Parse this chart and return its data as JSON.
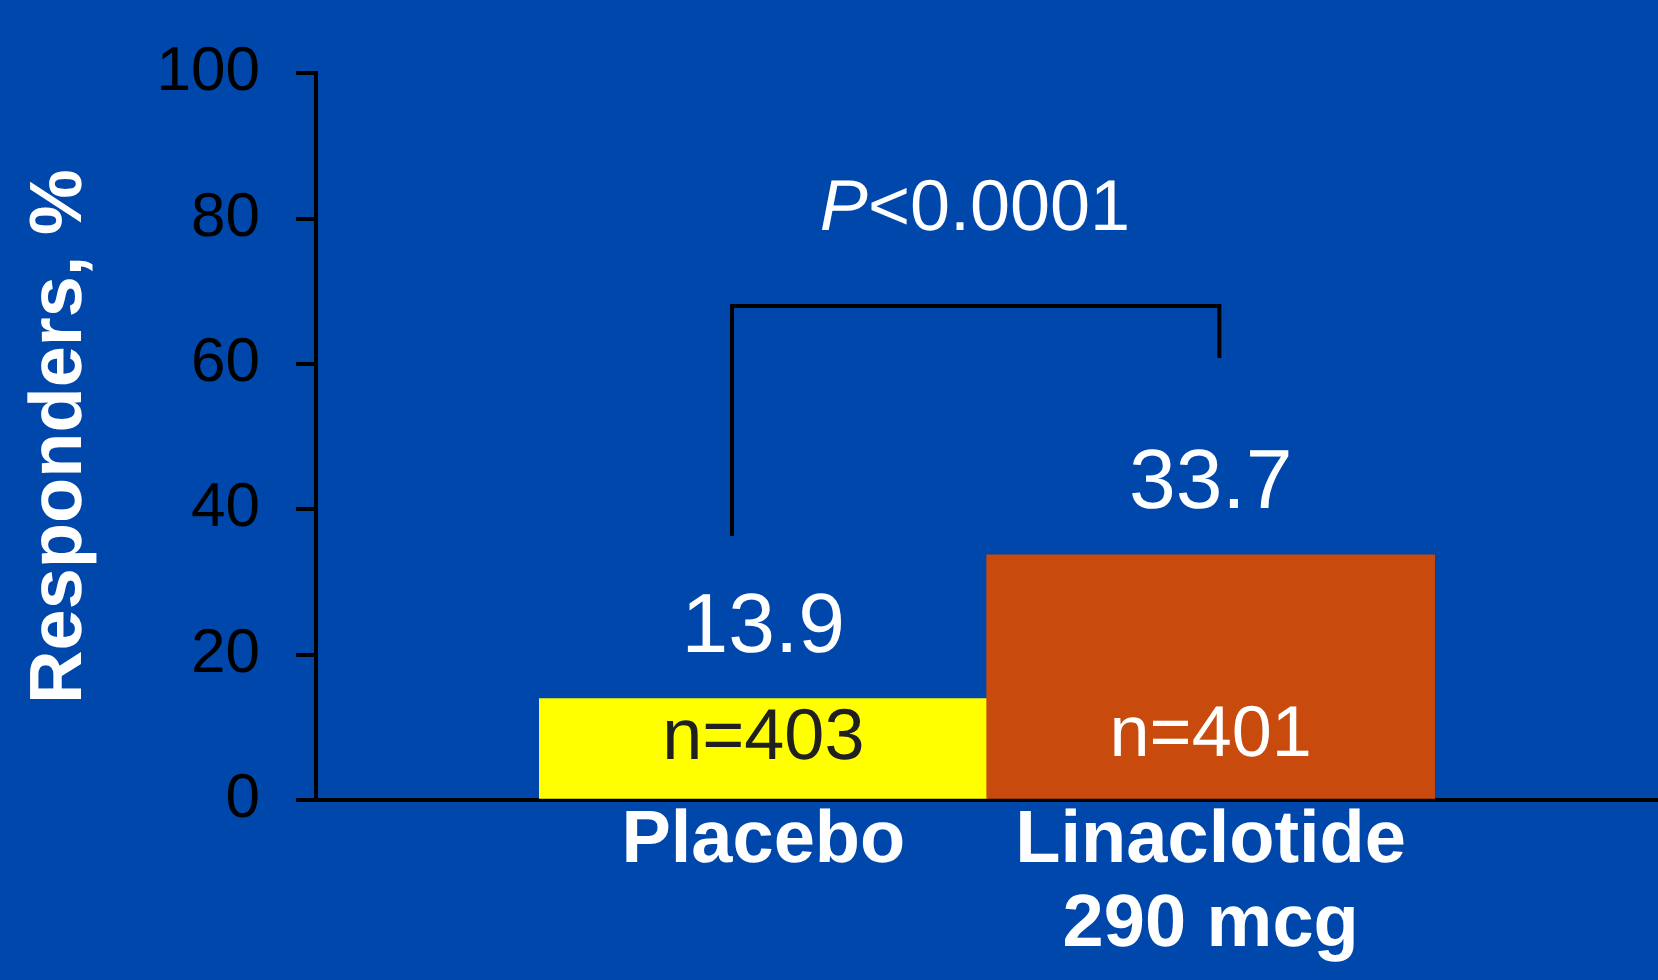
{
  "chart_data": {
    "type": "bar",
    "ylabel": "Responders, %",
    "categories": [
      "Placebo",
      "Linaclotide 290 mcg"
    ],
    "values": [
      13.9,
      33.7
    ],
    "colors": [
      "#ffff00",
      "#c84a0c"
    ],
    "ylim": [
      0,
      100
    ],
    "yticks": [
      0,
      20,
      40,
      60,
      80,
      100
    ],
    "data_labels": true,
    "annotations": [
      "P<0.0001",
      "n=403",
      "n=401"
    ]
  }
}
